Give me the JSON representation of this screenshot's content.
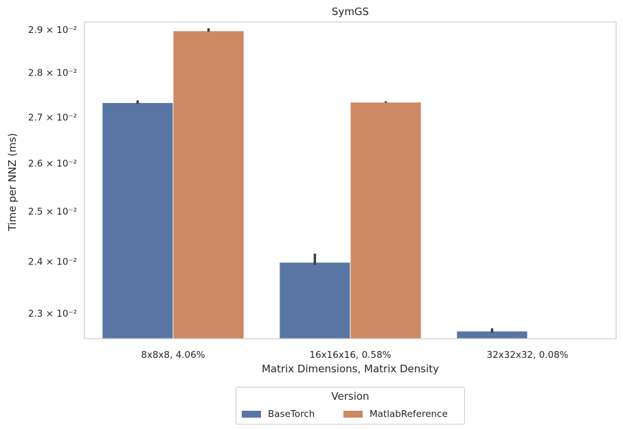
{
  "chart_data": {
    "type": "bar",
    "title": "SymGS",
    "xlabel": "Matrix Dimensions, Matrix Density",
    "ylabel": "Time per NNZ (ms)",
    "yscale": "log",
    "ylim": [
      0.02253,
      0.02918
    ],
    "yticks": [
      {
        "value": 0.023,
        "label": "2.3 × 10⁻²"
      },
      {
        "value": 0.024,
        "label": "2.4 × 10⁻²"
      },
      {
        "value": 0.025,
        "label": "2.5 × 10⁻²"
      },
      {
        "value": 0.026,
        "label": "2.6 × 10⁻²"
      },
      {
        "value": 0.027,
        "label": "2.7 × 10⁻²"
      },
      {
        "value": 0.028,
        "label": "2.8 × 10⁻²"
      },
      {
        "value": 0.029,
        "label": "2.9 × 10⁻²"
      }
    ],
    "grid": false,
    "categories": [
      "8x8x8, 4.06%",
      "16x16x16, 0.58%",
      "32x32x32, 0.08%"
    ],
    "series": [
      {
        "name": "BaseTorch",
        "color": "#5875a4",
        "values": [
          0.02732,
          0.02398,
          0.02267
        ],
        "err_low": [
          0.02729,
          0.02393,
          0.02264
        ],
        "err_high": [
          0.02737,
          0.02415,
          0.02272
        ]
      },
      {
        "name": "MatlabReference",
        "color": "#cc8963",
        "values": [
          0.02897,
          0.02733,
          null
        ],
        "err_low": [
          0.02895,
          0.02732,
          null
        ],
        "err_high": [
          0.02903,
          0.02735,
          null
        ]
      }
    ],
    "legend": {
      "title": "Version",
      "placement": "bottom-center"
    }
  }
}
